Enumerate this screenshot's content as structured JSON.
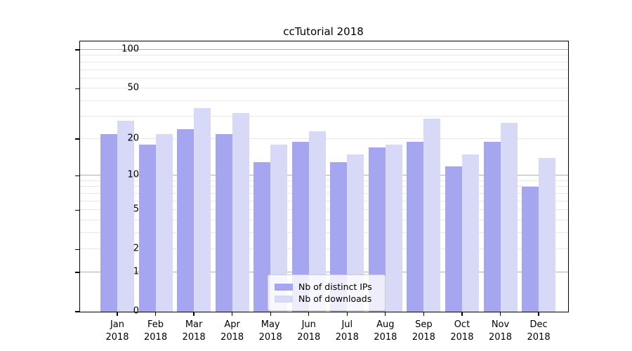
{
  "title": "ccTutorial 2018",
  "chart_data": {
    "type": "bar",
    "title": "ccTutorial 2018",
    "categories": [
      "Jan",
      "Feb",
      "Mar",
      "Apr",
      "May",
      "Jun",
      "Jul",
      "Aug",
      "Sep",
      "Oct",
      "Nov",
      "Dec"
    ],
    "x_sublabel": "2018",
    "series": [
      {
        "name": "Nb of distinct IPs",
        "color": "#a5a5f0",
        "values": [
          22,
          18,
          24,
          22,
          13,
          19,
          13,
          17,
          19,
          12,
          19,
          8
        ]
      },
      {
        "name": "Nb of downloads",
        "color": "#d8d8f7",
        "values": [
          28,
          22,
          35,
          32,
          18,
          23,
          15,
          18,
          29,
          15,
          27,
          14
        ]
      }
    ],
    "xlabel": "",
    "ylabel": "",
    "yscale": "log1p",
    "y_tick_values": [
      0,
      1,
      2,
      5,
      10,
      20,
      50,
      100
    ],
    "y_major_gridlines": [
      1,
      10,
      100
    ],
    "y_minor_gridlines": [
      2,
      3,
      4,
      5,
      6,
      7,
      8,
      9,
      20,
      30,
      40,
      50,
      60,
      70,
      80,
      90
    ],
    "ylim": [
      0,
      115
    ],
    "grid": true,
    "legend_position": "bottom-center",
    "colors": {
      "axis": "#000000",
      "major_grid": "#b0b0b0",
      "minor_grid": "#e7e7e7"
    }
  }
}
